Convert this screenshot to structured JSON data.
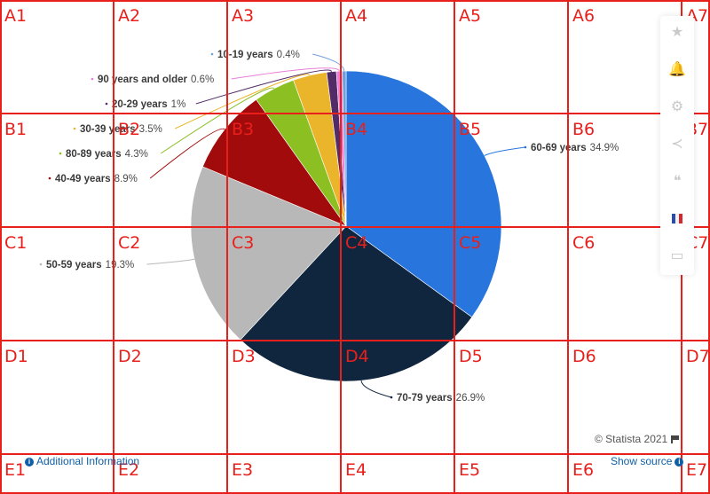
{
  "chart_data": {
    "type": "pie",
    "title": "",
    "unit": "%",
    "slices": [
      {
        "label": "60-69 years",
        "value": 34.9,
        "value_label": "34.9%",
        "color": "#2876dd"
      },
      {
        "label": "70-79 years",
        "value": 26.9,
        "value_label": "26.9%",
        "color": "#10263f"
      },
      {
        "label": "50-59 years",
        "value": 19.3,
        "value_label": "19.3%",
        "color": "#b8b8b8"
      },
      {
        "label": "40-49 years",
        "value": 8.9,
        "value_label": "8.9%",
        "color": "#a20b0c"
      },
      {
        "label": "80-89 years",
        "value": 4.3,
        "value_label": "4.3%",
        "color": "#8bbf22"
      },
      {
        "label": "30-39 years",
        "value": 3.5,
        "value_label": "3.5%",
        "color": "#eab52a"
      },
      {
        "label": "20-29 years",
        "value": 1.0,
        "value_label": "1%",
        "color": "#532b67"
      },
      {
        "label": "90 years and older",
        "value": 0.6,
        "value_label": "0.6%",
        "color": "#e77fd8"
      },
      {
        "label": "10-19 years",
        "value": 0.4,
        "value_label": "0.4%",
        "color": "#70a0dc"
      }
    ]
  },
  "footer": {
    "additional_info": "Additional Information",
    "show_source": "Show source",
    "credit": "© Statista 2021"
  },
  "toolbar": {
    "icons": [
      "star-icon",
      "bell-icon",
      "gear-icon",
      "share-icon",
      "quote-icon",
      "flag-fr-icon",
      "print-icon"
    ]
  },
  "grid_overlay": {
    "rows": [
      "A",
      "B",
      "C",
      "D",
      "E"
    ],
    "cols": [
      "1",
      "2",
      "3",
      "4",
      "5",
      "6",
      "7"
    ]
  }
}
